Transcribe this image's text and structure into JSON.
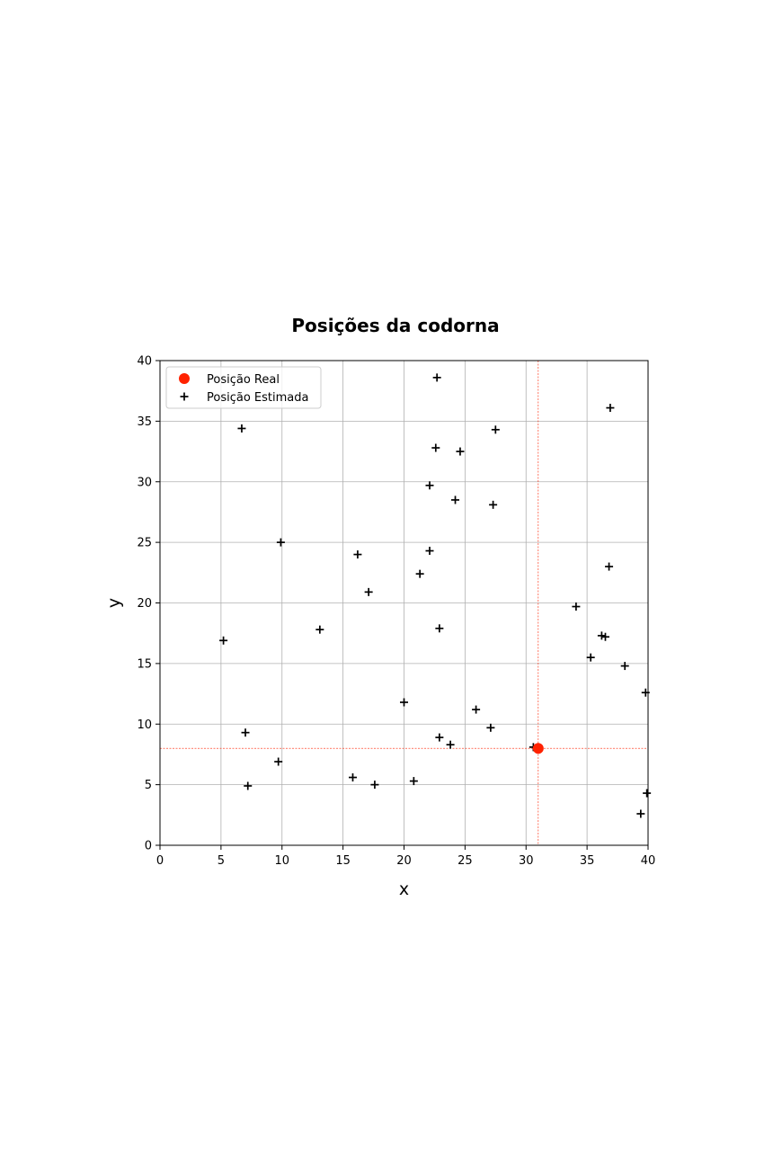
{
  "chart_data": {
    "type": "scatter",
    "title": "Posições da codorna",
    "xlabel": "x",
    "ylabel": "y",
    "xlim": [
      0,
      40
    ],
    "ylim": [
      0,
      40
    ],
    "xticks": [
      "0",
      "5",
      "10",
      "15",
      "20",
      "25",
      "30",
      "35",
      "40"
    ],
    "yticks": [
      "0",
      "5",
      "10",
      "15",
      "20",
      "25",
      "30",
      "35",
      "40"
    ],
    "grid": true,
    "legend_position": "top-left",
    "series": [
      {
        "name": "Posição Real",
        "marker": "circle",
        "color": "#ff2200",
        "points": [
          [
            31.0,
            8.0
          ]
        ]
      },
      {
        "name": "Posição Estimada",
        "marker": "plus",
        "color": "#000000",
        "points": [
          [
            22.7,
            38.6
          ],
          [
            36.9,
            36.1
          ],
          [
            6.7,
            34.4
          ],
          [
            27.5,
            34.3
          ],
          [
            22.6,
            32.8
          ],
          [
            24.6,
            32.5
          ],
          [
            22.1,
            29.7
          ],
          [
            24.2,
            28.5
          ],
          [
            27.3,
            28.1
          ],
          [
            9.9,
            25.0
          ],
          [
            16.2,
            24.0
          ],
          [
            22.1,
            24.3
          ],
          [
            36.8,
            23.0
          ],
          [
            21.3,
            22.4
          ],
          [
            17.1,
            20.9
          ],
          [
            34.1,
            19.7
          ],
          [
            5.2,
            16.9
          ],
          [
            13.1,
            17.8
          ],
          [
            22.9,
            17.9
          ],
          [
            36.2,
            17.3
          ],
          [
            36.5,
            17.2
          ],
          [
            35.3,
            15.5
          ],
          [
            38.1,
            14.8
          ],
          [
            39.8,
            12.6
          ],
          [
            20.0,
            11.8
          ],
          [
            25.9,
            11.2
          ],
          [
            27.1,
            9.7
          ],
          [
            7.0,
            9.3
          ],
          [
            22.9,
            8.9
          ],
          [
            23.8,
            8.3
          ],
          [
            30.6,
            8.1
          ],
          [
            9.7,
            6.9
          ],
          [
            15.8,
            5.6
          ],
          [
            20.8,
            5.3
          ],
          [
            7.2,
            4.9
          ],
          [
            17.6,
            5.0
          ],
          [
            39.9,
            4.3
          ],
          [
            39.4,
            2.6
          ]
        ]
      }
    ],
    "reference_lines": {
      "color": "#ff2200",
      "style": "dashed",
      "x": 31.0,
      "y": 8.0
    }
  }
}
